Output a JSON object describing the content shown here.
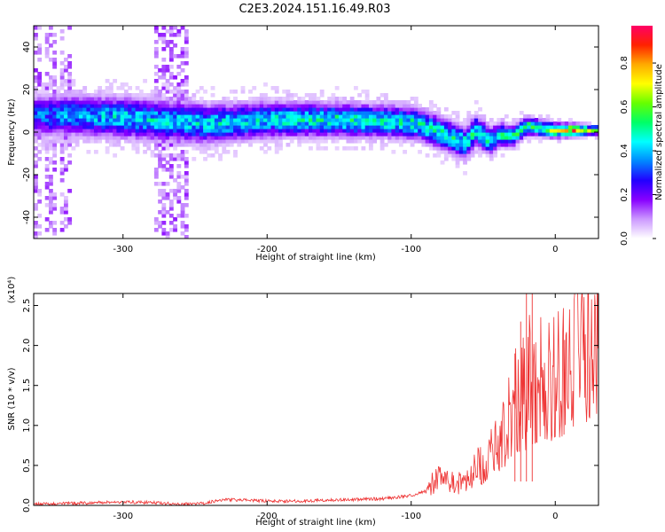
{
  "figure": {
    "title": "C2E3.2024.151.16.49.R03"
  },
  "colorbar": {
    "label": "Normalized spectral amplitude",
    "ticks": [
      "0.0",
      "0.2",
      "0.4",
      "0.6",
      "0.8"
    ],
    "stops": [
      "#ffffff",
      "#cc99ff",
      "#8800ff",
      "#2200ff",
      "#0088ff",
      "#00ffff",
      "#00ff66",
      "#66ff00",
      "#ffff00",
      "#ffaa00",
      "#ff2200",
      "#ff0066"
    ]
  },
  "chart_data": [
    {
      "type": "heatmap",
      "xlabel": "Height of straight line (km)",
      "ylabel": "Frequency (Hz)",
      "xlim": [
        -362,
        30
      ],
      "ylim": [
        -50,
        50
      ],
      "x_ticks": [
        "-300",
        "-200",
        "-100",
        "0"
      ],
      "y_ticks": [
        "-40",
        "-20",
        "0",
        "20",
        "40"
      ],
      "x_tick_values": [
        -300,
        -200,
        -100,
        0
      ],
      "y_tick_values": [
        -40,
        -20,
        0,
        20,
        40
      ],
      "center_frequency": {
        "x": [
          -362,
          -340,
          -300,
          -260,
          -240,
          -200,
          -150,
          -110,
          -95,
          -80,
          -70,
          -62,
          -55,
          -45,
          -38,
          -30,
          -20,
          -10,
          0,
          30
        ],
        "y": [
          8,
          8,
          7,
          5,
          4,
          6,
          6,
          5,
          4,
          0,
          -3,
          -5,
          1,
          -4,
          -1,
          -2,
          3,
          2,
          1,
          1
        ]
      },
      "band_halfwidth_hz": {
        "x": [
          -362,
          -260,
          -200,
          -100,
          -60,
          -20,
          30
        ],
        "y": [
          9,
          9,
          8,
          7,
          7,
          4,
          2
        ]
      },
      "peak_amplitude": {
        "x": [
          -362,
          -300,
          -200,
          -150,
          -100,
          -60,
          -30,
          -10,
          10,
          30
        ],
        "y": [
          0.35,
          0.45,
          0.45,
          0.5,
          0.5,
          0.5,
          0.5,
          0.6,
          0.85,
          0.6
        ]
      },
      "noise_columns_x": [
        -360,
        -350,
        -340,
        -275,
        -270,
        -262,
        -258
      ]
    },
    {
      "type": "line",
      "xlabel": "Height of straight line (km)",
      "ylabel": "SNR (10 * v/v)",
      "y_scale_label": "(x10⁴)",
      "xlim": [
        -362,
        30
      ],
      "ylim": [
        0,
        2.65
      ],
      "x_ticks": [
        "-300",
        "-200",
        "-100",
        "0"
      ],
      "y_ticks": [
        "0.0",
        "0.5",
        "1.0",
        "1.5",
        "2.0",
        "2.5"
      ],
      "x_tick_values": [
        -300,
        -200,
        -100,
        0
      ],
      "y_tick_values": [
        0,
        0.5,
        1.0,
        1.5,
        2.0,
        2.5
      ],
      "series": [
        {
          "color": "#ee3333",
          "x": [
            -362,
            -340,
            -300,
            -280,
            -260,
            -245,
            -230,
            -200,
            -180,
            -160,
            -140,
            -120,
            -110,
            -100,
            -90,
            -80,
            -75,
            -70,
            -65,
            -60,
            -55,
            -50,
            -45,
            -40,
            -35,
            -30,
            -28,
            -25,
            -22,
            -20,
            -18,
            -16,
            -14,
            -12,
            -10,
            -8,
            -5,
            0,
            5,
            10,
            15,
            20,
            25,
            30
          ],
          "y": [
            0.01,
            0.02,
            0.04,
            0.03,
            0.01,
            0.02,
            0.07,
            0.05,
            0.05,
            0.06,
            0.07,
            0.08,
            0.1,
            0.12,
            0.18,
            0.35,
            0.3,
            0.28,
            0.25,
            0.3,
            0.45,
            0.5,
            0.6,
            0.7,
            0.9,
            1.1,
            1.3,
            1.2,
            1.7,
            1.0,
            1.8,
            1.5,
            1.3,
            1.2,
            1.5,
            1.6,
            1.5,
            1.5,
            1.6,
            1.75,
            1.85,
            1.9,
            1.95,
            2.0
          ]
        }
      ],
      "spikes": [
        {
          "x": -20,
          "y": 2.65
        },
        {
          "x": -16,
          "y": 2.65
        },
        {
          "x": -24,
          "y": 2.3
        },
        {
          "x": -28,
          "y": 1.9
        }
      ]
    }
  ]
}
